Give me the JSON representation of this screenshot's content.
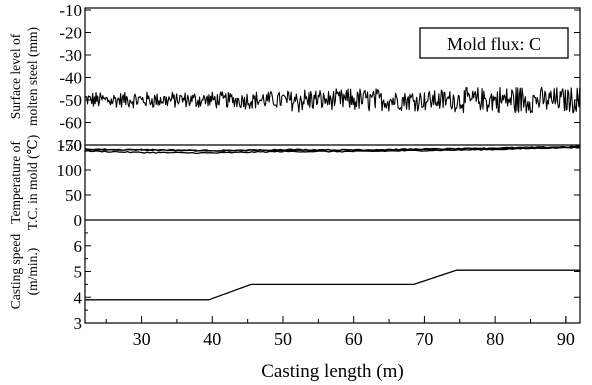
{
  "chart_data": {
    "type": "line",
    "xlabel": "Casting length  (m)",
    "xlim": [
      22,
      92
    ],
    "xticks": [
      30,
      40,
      50,
      60,
      70,
      80,
      90
    ],
    "legend_box": "Mold flux: C",
    "panels": [
      {
        "id": "level",
        "ylabel_lines": [
          "Surface level of",
          "molten steel (mm)"
        ],
        "ylim": [
          -70,
          -10
        ],
        "yticks": [
          -10,
          -20,
          -30,
          -40,
          -50,
          -60,
          -70
        ],
        "series": [
          {
            "kind": "noise",
            "mean": -50,
            "amplitude": [
              [
                22,
                4
              ],
              [
                40,
                4
              ],
              [
                50,
                4.5
              ],
              [
                53,
                7
              ],
              [
                56,
                4.5
              ],
              [
                60,
                6
              ],
              [
                70,
                5
              ],
              [
                80,
                6.5
              ],
              [
                83,
                8
              ],
              [
                86,
                6
              ],
              [
                92,
                6.5
              ]
            ]
          }
        ]
      },
      {
        "id": "temp",
        "ylabel_lines": [
          "Temperature of",
          "T.C. in mold (℃)"
        ],
        "ylim": [
          0,
          150
        ],
        "yticks": [
          0,
          50,
          100,
          150
        ],
        "series": [
          {
            "x": [
              22,
              30,
              40,
              50,
              60,
              70,
              80,
              92
            ],
            "values": [
              142,
              140,
              138,
              141,
              140,
              142,
              143,
              145
            ]
          },
          {
            "x": [
              22,
              30,
              40,
              50,
              60,
              70,
              80,
              92
            ],
            "values": [
              138,
              135,
              134,
              137,
              137,
              139,
              141,
              146
            ]
          },
          {
            "x": [
              22,
              30,
              40,
              50,
              60,
              70,
              80,
              92
            ],
            "values": [
              140,
              141,
              139,
              139,
              140,
              141,
              144,
              147
            ]
          }
        ]
      },
      {
        "id": "speed",
        "ylabel_lines": [
          "Casting speed",
          "(m/min.)"
        ],
        "ylim": [
          3,
          7
        ],
        "yticks": [
          3,
          4,
          5,
          6
        ],
        "series": [
          {
            "x": [
              22,
              39.5,
              45.5,
              68.5,
              74.5,
              92
            ],
            "values": [
              3.9,
              3.9,
              4.5,
              4.5,
              5.05,
              5.05
            ]
          }
        ]
      }
    ]
  }
}
